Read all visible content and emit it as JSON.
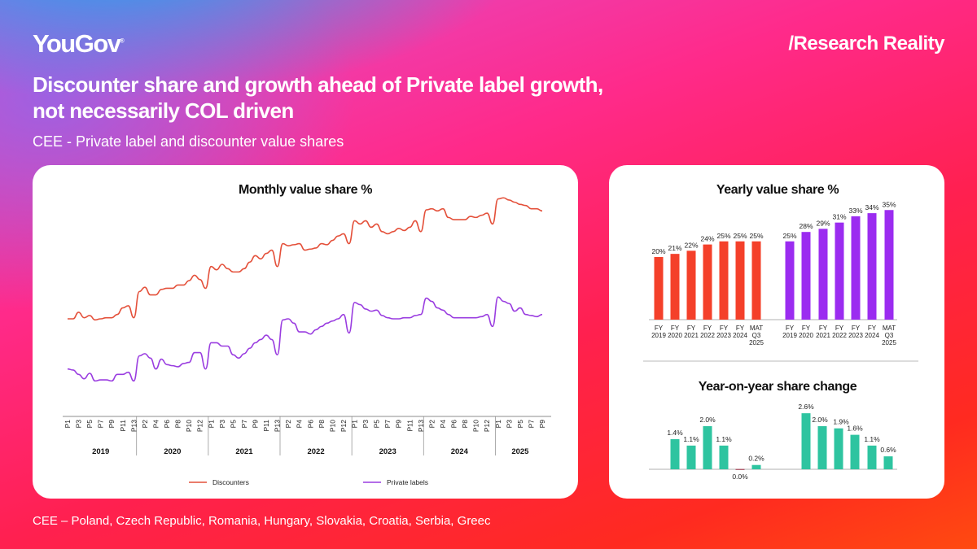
{
  "header": {
    "logo": "YouGov",
    "tagline": "/Research Reality",
    "title_line1": "Discounter share and growth ahead of Private label growth,",
    "title_line2": "not necessarily COL driven",
    "subtitle": "CEE - Private label and discounter value shares"
  },
  "footer": {
    "note": "CEE – Poland, Czech Republic, Romania, Hungary, Slovakia, Croatia, Serbia, Greec"
  },
  "colors": {
    "discounters": "#e4503a",
    "private_labels": "#9a3de0",
    "yearly_red": "#f4402a",
    "yearly_purple": "#9b2cf0",
    "yoy_green": "#2ec4a0"
  },
  "chart_data": [
    {
      "type": "line",
      "title": "Monthly value share %",
      "years": [
        "2019",
        "2020",
        "2021",
        "2022",
        "2023",
        "2024",
        "2025"
      ],
      "periods_per_year": [
        13,
        13,
        13,
        13,
        13,
        13,
        9
      ],
      "tick_labels": [
        [
          "P1",
          "P3",
          "P5",
          "P7",
          "P9",
          "P11",
          "P13"
        ],
        [
          "P2",
          "P4",
          "P6",
          "P8",
          "P10",
          "P12"
        ],
        [
          "P1",
          "P3",
          "P5",
          "P7",
          "P9",
          "P11",
          "P13"
        ],
        [
          "P2",
          "P4",
          "P6",
          "P8",
          "P10",
          "P12"
        ],
        [
          "P1",
          "P3",
          "P5",
          "P7",
          "P9",
          "P11",
          "P13"
        ],
        [
          "P2",
          "P4",
          "P6",
          "P8",
          "P10",
          "P12"
        ],
        [
          "P1",
          "P3",
          "P5",
          "P7",
          "P9"
        ]
      ],
      "legend_position": "bottom",
      "grid": false,
      "y_axis_shown": false,
      "series": [
        {
          "name": "Discounters",
          "color": "#e4503a",
          "values": [
            25.0,
            25.0,
            25.6,
            25.1,
            25.3,
            24.9,
            25.0,
            25.1,
            25.1,
            25.4,
            26.0,
            26.2,
            25.1,
            27.5,
            27.9,
            27.2,
            27.2,
            27.7,
            27.8,
            27.8,
            28.1,
            28.1,
            28.5,
            29.0,
            28.6,
            27.8,
            29.8,
            29.5,
            30.0,
            29.6,
            29.3,
            29.3,
            29.6,
            30.2,
            30.8,
            30.5,
            31.0,
            31.3,
            29.8,
            31.9,
            31.7,
            31.8,
            31.9,
            31.3,
            31.4,
            31.5,
            31.9,
            31.8,
            32.2,
            32.6,
            32.8,
            31.9,
            34.0,
            33.7,
            34.0,
            33.4,
            33.7,
            33.0,
            32.8,
            33.0,
            33.3,
            33.1,
            33.4,
            34.0,
            33.0,
            35.0,
            35.1,
            34.9,
            35.1,
            34.3,
            34.1,
            34.1,
            34.1,
            34.4,
            34.3,
            34.5,
            34.7,
            33.7,
            36.0,
            36.1,
            35.9,
            35.7,
            35.5,
            35.4,
            35.1,
            35.1,
            34.9
          ]
        },
        {
          "name": "Private labels",
          "color": "#9a3de0",
          "values": [
            20.4,
            20.3,
            19.9,
            19.5,
            20.0,
            19.3,
            19.4,
            19.4,
            19.3,
            19.9,
            19.9,
            20.1,
            19.3,
            21.6,
            21.8,
            21.4,
            20.4,
            21.3,
            20.8,
            20.7,
            20.6,
            20.9,
            21.0,
            21.9,
            21.9,
            20.4,
            22.8,
            22.8,
            22.5,
            22.5,
            21.7,
            21.4,
            21.8,
            22.3,
            22.8,
            23.1,
            23.5,
            23.1,
            21.7,
            24.9,
            25.0,
            24.6,
            23.8,
            23.8,
            23.6,
            24.0,
            24.3,
            24.6,
            24.8,
            25.0,
            25.4,
            23.7,
            26.5,
            26.3,
            25.9,
            25.7,
            25.8,
            25.3,
            25.1,
            25.0,
            25.0,
            25.1,
            25.1,
            25.3,
            25.4,
            26.9,
            26.6,
            26.0,
            25.8,
            25.4,
            25.1,
            25.1,
            25.1,
            25.1,
            25.1,
            25.2,
            25.4,
            24.3,
            27.0,
            26.6,
            26.4,
            25.7,
            26.0,
            25.4,
            25.3,
            25.2,
            25.4
          ]
        }
      ]
    },
    {
      "type": "bar",
      "title": "Yearly value share %",
      "categories": [
        [
          "FY",
          "2019"
        ],
        [
          "FY",
          "2020"
        ],
        [
          "FY",
          "2021"
        ],
        [
          "FY",
          "2022"
        ],
        [
          "FY",
          "2023"
        ],
        [
          "FY",
          "2024"
        ],
        [
          "MAT",
          "Q3",
          "2025"
        ]
      ],
      "series": [
        {
          "color": "#f4402a",
          "values": [
            20,
            21,
            22,
            24,
            25,
            25,
            25
          ],
          "labels": [
            "20%",
            "21%",
            "22%",
            "24%",
            "25%",
            "25%",
            "25%"
          ]
        },
        {
          "color": "#9b2cf0",
          "values": [
            25,
            28,
            29,
            31,
            33,
            34,
            35
          ],
          "labels": [
            "25%",
            "28%",
            "29%",
            "31%",
            "33%",
            "34%",
            "35%"
          ]
        }
      ],
      "ylim": [
        0,
        36
      ]
    },
    {
      "type": "bar",
      "title": "Year-on-year share change",
      "series": [
        {
          "color": "#2ec4a0",
          "values": [
            1.4,
            1.1,
            2.0,
            1.1,
            0.0,
            0.2
          ],
          "labels": [
            "1.4%",
            "1.1%",
            "2.0%",
            "1.1%",
            "0.0%",
            "0.2%"
          ]
        },
        {
          "color": "#2ec4a0",
          "values": [
            2.6,
            2.0,
            1.9,
            1.6,
            1.1,
            0.6
          ],
          "labels": [
            "2.6%",
            "2.0%",
            "1.9%",
            "1.6%",
            "1.1%",
            "0.6%"
          ]
        }
      ]
    }
  ]
}
